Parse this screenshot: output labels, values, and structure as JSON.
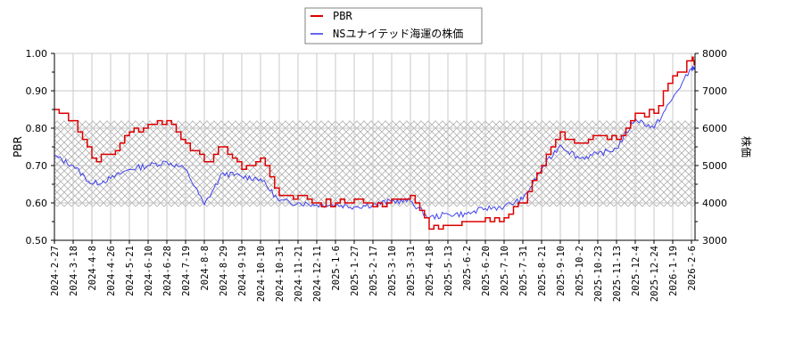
{
  "legend": {
    "items": [
      {
        "label": "PBR",
        "color": "#dd0000"
      },
      {
        "label": "NSユナイテッド海運の株価",
        "color": "#4444ee"
      }
    ]
  },
  "axes": {
    "left_title": "PBR",
    "right_title": "株価",
    "left_ticks": [
      "1.00",
      "0.90",
      "0.80",
      "0.70",
      "0.60",
      "0.50"
    ],
    "right_ticks": [
      "8000",
      "7000",
      "6000",
      "5000",
      "4000",
      "3000"
    ]
  },
  "chart_data": {
    "type": "line",
    "title": "",
    "xlabel": "",
    "ylabel": "PBR",
    "ylabel_right": "株価",
    "ylim": [
      0.5,
      1.0
    ],
    "ylim_right": [
      3000,
      8000
    ],
    "grid": true,
    "legend_position": "top-center",
    "shaded_band": {
      "axis": "left",
      "from": 0.59,
      "to": 0.82,
      "pattern": "crosshatch"
    },
    "x_tick_labels": [
      "2024-2-27",
      "2024-3-18",
      "2024-4-8",
      "2024-4-26",
      "2024-5-21",
      "2024-6-10",
      "2024-6-28",
      "2024-7-19",
      "2024-8-8",
      "2024-8-29",
      "2024-9-19",
      "2024-10-10",
      "2024-10-31",
      "2024-11-21",
      "2024-12-11",
      "2025-1-6",
      "2025-1-27",
      "2025-2-17",
      "2025-3-10",
      "2025-3-31",
      "2025-4-18",
      "2025-5-13",
      "2025-6-2",
      "2025-6-20",
      "2025-7-10",
      "2025-7-31",
      "2025-8-21",
      "2025-9-10",
      "2025-10-2",
      "2025-10-23",
      "2025-11-13",
      "2025-12-4",
      "2025-12-24",
      "2026-1-19",
      "2026-2-6"
    ],
    "x": [
      "2024-2-27",
      "2024-3-18",
      "2024-4-8",
      "2024-4-26",
      "2024-5-21",
      "2024-6-10",
      "2024-6-28",
      "2024-7-19",
      "2024-8-8",
      "2024-8-29",
      "2024-9-19",
      "2024-10-10",
      "2024-10-31",
      "2024-11-21",
      "2024-12-11",
      "2025-1-6",
      "2025-1-27",
      "2025-2-17",
      "2025-3-10",
      "2025-3-31",
      "2025-4-18",
      "2025-5-13",
      "2025-6-2",
      "2025-6-20",
      "2025-7-10",
      "2025-7-31",
      "2025-8-21",
      "2025-9-10",
      "2025-10-2",
      "2025-10-23",
      "2025-11-13",
      "2025-12-4",
      "2025-12-24",
      "2026-1-19",
      "2026-2-6"
    ],
    "series": [
      {
        "name": "PBR",
        "axis": "left",
        "color": "#dd0000",
        "values": [
          0.85,
          0.82,
          0.72,
          0.73,
          0.79,
          0.81,
          0.82,
          0.76,
          0.71,
          0.75,
          0.69,
          0.72,
          0.62,
          0.62,
          0.6,
          0.6,
          0.61,
          0.59,
          0.61,
          0.62,
          0.53,
          0.54,
          0.55,
          0.56,
          0.56,
          0.6,
          0.7,
          0.79,
          0.76,
          0.78,
          0.77,
          0.84,
          0.84,
          0.94,
          0.98
        ]
      },
      {
        "name": "NSユナイテッド海運の株価",
        "axis": "right",
        "color": "#4444ee",
        "values": [
          5250,
          5000,
          4500,
          4650,
          4900,
          5000,
          5100,
          4900,
          3950,
          4800,
          4700,
          4650,
          4050,
          4000,
          3950,
          3950,
          3900,
          3950,
          4050,
          4050,
          3600,
          3700,
          3700,
          3850,
          3900,
          4100,
          4900,
          5550,
          5200,
          5300,
          5450,
          6250,
          6000,
          6800,
          7600
        ]
      }
    ]
  }
}
